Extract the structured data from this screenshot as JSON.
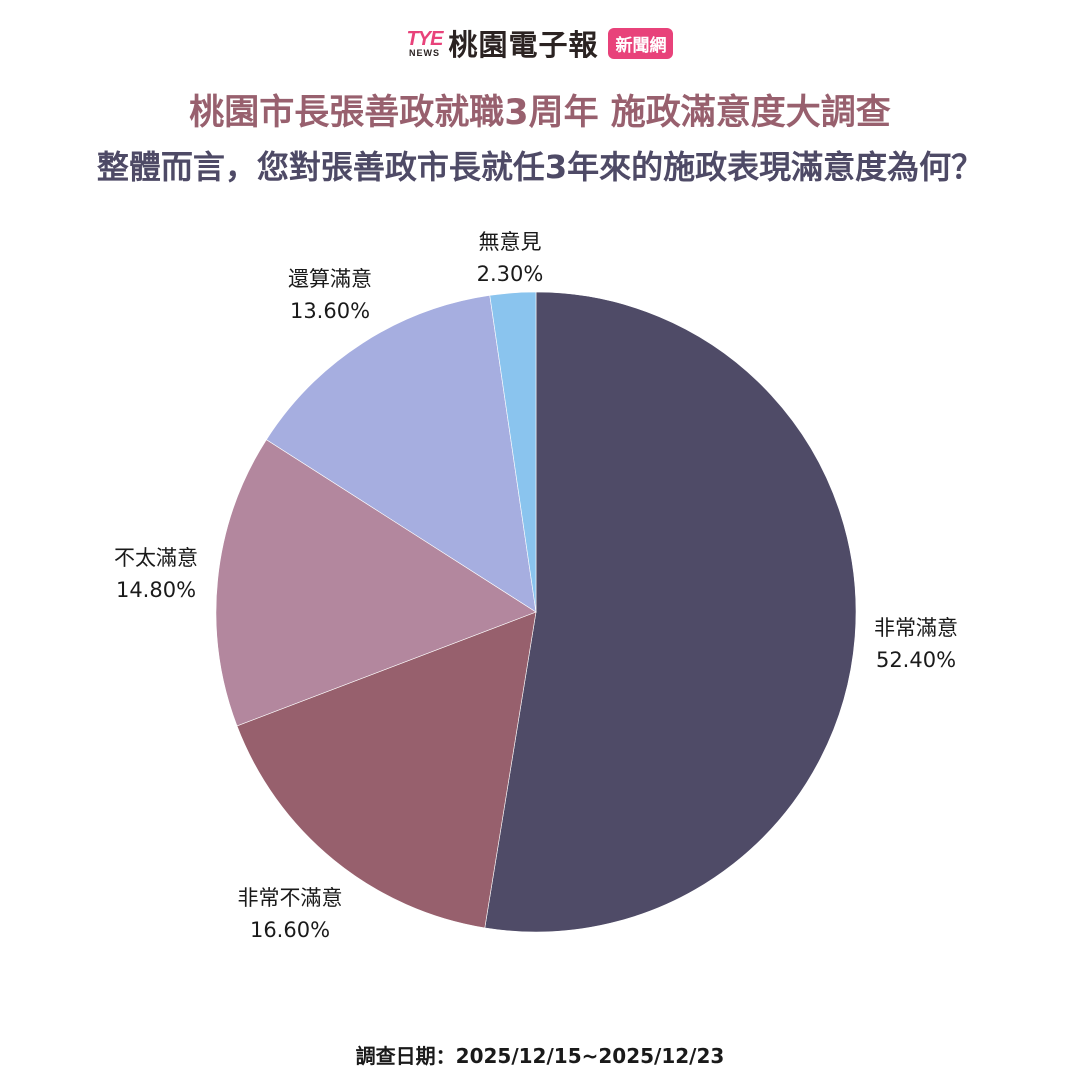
{
  "header": {
    "logo_mark": "TYE",
    "logo_news": "NEWS",
    "logo_name": "桃園電子報",
    "logo_badge": "新聞網",
    "brand_color": "#e8427a"
  },
  "title": "桃園市長張善政就職3周年  施政滿意度大調查",
  "subtitle": "整體而言，您對張善政市長就任3年來的施政表現滿意度為何？",
  "footer": "調查日期：2025/12/15~2025/12/23",
  "labels": [
    {
      "name": "非常滿意",
      "pct": "52.40%"
    },
    {
      "name": "非常不滿意",
      "pct": "16.60%"
    },
    {
      "name": "不太滿意",
      "pct": "14.80%"
    },
    {
      "name": "還算滿意",
      "pct": "13.60%"
    },
    {
      "name": "無意見",
      "pct": "2.30%"
    }
  ],
  "chart_data": {
    "type": "pie",
    "title": "桃園市長張善政就職3周年  施政滿意度大調查",
    "subtitle": "整體而言，您對張善政市長就任3年來的施政表現滿意度為何？",
    "categories": [
      "非常滿意",
      "非常不滿意",
      "不太滿意",
      "還算滿意",
      "無意見"
    ],
    "values": [
      52.4,
      16.6,
      14.8,
      13.6,
      2.3
    ],
    "unit": "%",
    "colors": [
      "#4f4b67",
      "#97606d",
      "#b3879e",
      "#a6aee0",
      "#8ac4ee"
    ],
    "start_angle": "12 o'clock",
    "direction": "clockwise",
    "legend": "none (direct labels outside slices)",
    "note": "調查日期：2025/12/15~2025/12/23"
  }
}
